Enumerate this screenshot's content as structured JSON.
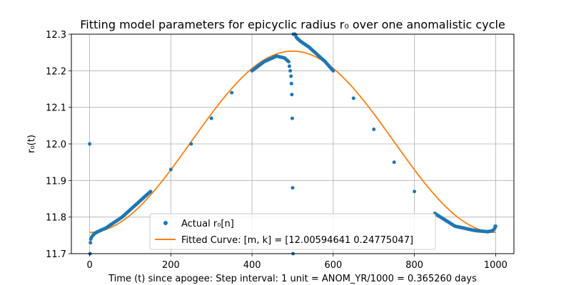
{
  "chart_data": {
    "type": "line",
    "title": "Fitting model parameters for epicyclic radius r₀ over one anomalistic cycle",
    "xlabel": "Time (t) since apogee: Step interval: 1 unit = ANOM_YR/1000 = 0.365260 days",
    "ylabel": "r₀(t)",
    "xlim": [
      -45,
      1045
    ],
    "ylim": [
      11.7,
      12.3
    ],
    "xticks": [
      0,
      200,
      400,
      600,
      800,
      1000
    ],
    "xtick_labels": [
      "0",
      "200",
      "400",
      "600",
      "800",
      "1000"
    ],
    "yticks": [
      11.7,
      11.8,
      11.9,
      12.0,
      12.1,
      12.2,
      12.3
    ],
    "ytick_labels": [
      "11.7",
      "11.8",
      "11.9",
      "12.0",
      "12.1",
      "12.2",
      "12.3"
    ],
    "grid": true,
    "legend_position": "lower-center",
    "colors": {
      "actual": "#1f77b4",
      "fitted": "#ff7f0e"
    },
    "series": [
      {
        "name": "Actual r₀[n]",
        "kind": "scatter",
        "x": [
          0,
          1,
          2,
          3,
          5,
          8,
          12,
          20,
          40,
          60,
          80,
          100,
          150,
          200,
          250,
          300,
          350,
          400,
          430,
          460,
          480,
          490,
          494,
          496,
          497,
          498,
          499,
          500,
          501,
          502,
          503,
          504,
          506,
          510,
          520,
          540,
          560,
          580,
          600,
          650,
          700,
          750,
          800,
          850,
          900,
          950,
          980,
          990,
          995,
          998,
          999,
          1000
        ],
        "y": [
          12.0,
          11.7,
          11.73,
          11.74,
          11.745,
          11.75,
          11.755,
          11.76,
          11.77,
          11.785,
          11.8,
          11.82,
          11.87,
          11.93,
          12.0,
          12.07,
          12.14,
          12.2,
          12.225,
          12.24,
          12.235,
          12.225,
          12.2,
          12.185,
          12.165,
          12.135,
          12.07,
          11.88,
          11.7,
          12.3,
          12.3,
          12.3,
          12.3,
          12.29,
          12.28,
          12.265,
          12.245,
          12.225,
          12.2,
          12.125,
          12.04,
          11.95,
          11.87,
          11.81,
          11.775,
          11.763,
          11.76,
          11.762,
          11.765,
          11.77,
          11.775,
          11.775
        ]
      },
      {
        "name": "Fitted Curve: [m, k] = [12.00594641  0.24775047]",
        "kind": "line",
        "m": 12.00594641,
        "k": 0.24775047,
        "x_range": [
          0,
          1000
        ]
      }
    ]
  }
}
